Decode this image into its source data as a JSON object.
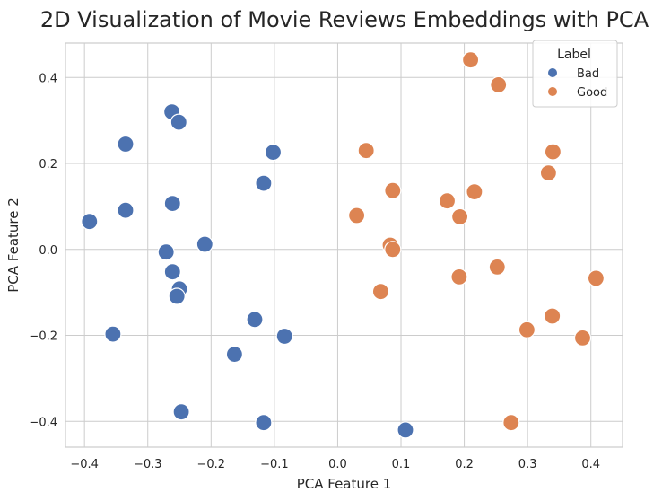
{
  "chart_data": {
    "type": "scatter",
    "title": "2D Visualization of Movie Reviews Embeddings with PCA",
    "xlabel": "PCA Feature 1",
    "ylabel": "PCA Feature 2",
    "xlim": [
      -0.43,
      0.45
    ],
    "ylim": [
      -0.46,
      0.48
    ],
    "x_ticks": [
      -0.4,
      -0.3,
      -0.2,
      -0.1,
      0.0,
      0.1,
      0.2,
      0.3,
      0.4
    ],
    "x_tick_labels": [
      "−0.4",
      "−0.3",
      "−0.2",
      "−0.1",
      "0.0",
      "0.1",
      "0.2",
      "0.3",
      "0.4"
    ],
    "y_ticks": [
      0.4,
      0.2,
      0.0,
      -0.2,
      -0.4
    ],
    "y_tick_labels": [
      "0.4",
      "0.2",
      "0.0",
      "−0.2",
      "−0.4"
    ],
    "grid": true,
    "legend": {
      "title": "Label",
      "placement": "top-right"
    },
    "series": [
      {
        "name": "Bad",
        "color": "#4c72b0",
        "points": [
          [
            -0.262,
            0.32
          ],
          [
            -0.251,
            0.296
          ],
          [
            -0.335,
            0.245
          ],
          [
            -0.102,
            0.226
          ],
          [
            -0.117,
            0.154
          ],
          [
            -0.261,
            0.107
          ],
          [
            -0.335,
            0.091
          ],
          [
            -0.392,
            0.065
          ],
          [
            -0.21,
            0.012
          ],
          [
            -0.271,
            -0.006
          ],
          [
            -0.261,
            -0.052
          ],
          [
            -0.25,
            -0.092
          ],
          [
            -0.254,
            -0.109
          ],
          [
            -0.131,
            -0.163
          ],
          [
            -0.355,
            -0.197
          ],
          [
            -0.084,
            -0.202
          ],
          [
            -0.163,
            -0.244
          ],
          [
            -0.247,
            -0.378
          ],
          [
            -0.117,
            -0.403
          ],
          [
            0.107,
            -0.42
          ]
        ]
      },
      {
        "name": "Good",
        "color": "#dd8452",
        "points": [
          [
            0.21,
            0.441
          ],
          [
            0.254,
            0.383
          ],
          [
            0.045,
            0.23
          ],
          [
            0.34,
            0.227
          ],
          [
            0.333,
            0.178
          ],
          [
            0.087,
            0.137
          ],
          [
            0.216,
            0.134
          ],
          [
            0.173,
            0.113
          ],
          [
            0.193,
            0.076
          ],
          [
            0.03,
            0.079
          ],
          [
            0.083,
            0.01
          ],
          [
            0.087,
            0.0
          ],
          [
            0.068,
            -0.098
          ],
          [
            0.192,
            -0.064
          ],
          [
            0.252,
            -0.041
          ],
          [
            0.408,
            -0.067
          ],
          [
            0.339,
            -0.155
          ],
          [
            0.299,
            -0.187
          ],
          [
            0.387,
            -0.206
          ],
          [
            0.274,
            -0.403
          ]
        ]
      }
    ]
  }
}
